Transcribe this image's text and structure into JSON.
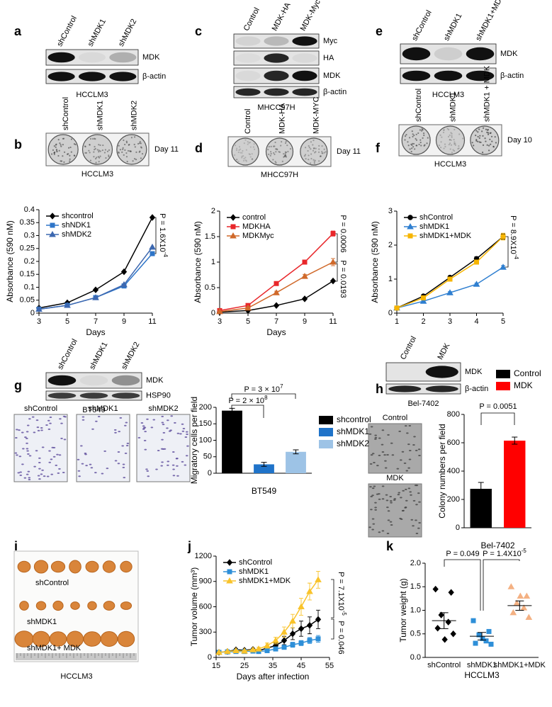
{
  "panel_letters": [
    "a",
    "b",
    "c",
    "d",
    "e",
    "f",
    "g",
    "h",
    "i",
    "j",
    "k"
  ],
  "blots": {
    "a": {
      "lanes": [
        "shControl",
        "shMDK1",
        "shMDK2"
      ],
      "bands": [
        "MDK",
        "β-actin"
      ],
      "cell_line": "HCCLM3"
    },
    "c": {
      "lanes": [
        "Control",
        "MDK-HA",
        "MDK-Myc"
      ],
      "bands": [
        "Myc",
        "HA",
        "MDK",
        "β-actin"
      ],
      "cell_line": "MHCC97H"
    },
    "e": {
      "lanes": [
        "shControl",
        "shMDK1",
        "shMDK1+MDK"
      ],
      "bands": [
        "MDK",
        "β-actin"
      ],
      "cell_line": "HCCLM3"
    },
    "g": {
      "lanes": [
        "shControl",
        "shMDK1",
        "shMDK2"
      ],
      "bands": [
        "MDK",
        "HSP90"
      ],
      "cell_line": "BT549"
    },
    "h": {
      "lanes": [
        "Control",
        "MDK"
      ],
      "bands": [
        "MDK",
        "β-actin"
      ],
      "cell_line": "Bel-7402"
    }
  },
  "colony": {
    "b": {
      "lanes": [
        "shControl",
        "shMDK1",
        "shMDK2"
      ],
      "day": "Day 11",
      "cell_line": "HCCLM3"
    },
    "d": {
      "lanes": [
        "Control",
        "MDK-HA",
        "MDK-MYC"
      ],
      "day": "Day 11",
      "cell_line": "MHCC97H"
    },
    "f": {
      "lanes": [
        "shControl",
        "shMDK1",
        "shMDK1 + MDK"
      ],
      "day": "Day 10",
      "cell_line": "HCCLM3"
    }
  },
  "transwell": {
    "g": [
      "shControl",
      "shMDK1",
      "shMDK2"
    ],
    "h": [
      "Control",
      "MDK"
    ]
  },
  "tumor_photo": {
    "labels": [
      "shControl",
      "shMDK1",
      "shMDK1+ MDK"
    ],
    "cell_line": "HCCLM3"
  },
  "chart_data": [
    {
      "type": "line",
      "x": [
        3,
        5,
        7,
        9,
        11
      ],
      "xlim": [
        3,
        11
      ],
      "xticks": [
        3,
        5,
        7,
        9,
        11
      ],
      "ylim": [
        0,
        0.4
      ],
      "yticks": [
        0,
        0.05,
        0.1,
        0.15,
        0.2,
        0.25,
        0.3,
        0.35,
        0.4
      ],
      "ylabel": "Absorbance (590 nM)",
      "xlabel": "Days",
      "legend": "upper left",
      "series": [
        {
          "name": "shcontrol",
          "color": "#000000",
          "marker": "diamond",
          "values": [
            0.02,
            0.04,
            0.09,
            0.16,
            0.37
          ]
        },
        {
          "name": "shNDK1",
          "color": "#2e75c8",
          "marker": "square",
          "values": [
            0.015,
            0.03,
            0.06,
            0.105,
            0.23
          ]
        },
        {
          "name": "shMDK2",
          "color": "#3d68b0",
          "marker": "triangle",
          "values": [
            0.015,
            0.03,
            0.06,
            0.11,
            0.255
          ]
        }
      ],
      "annotations": [
        {
          "text": "P = 1.6X10",
          "sup": "-4"
        }
      ]
    },
    {
      "type": "line",
      "x": [
        3,
        5,
        7,
        9,
        11
      ],
      "xlim": [
        3,
        11
      ],
      "xticks": [
        3,
        5,
        7,
        9,
        11
      ],
      "ylim": [
        0,
        2
      ],
      "yticks": [
        0,
        0.5,
        1,
        1.5,
        2
      ],
      "ylabel": "Absorbance (590 nM)",
      "xlabel": "Days",
      "legend": "upper left",
      "series": [
        {
          "name": "control",
          "color": "#000000",
          "marker": "diamond",
          "values": [
            0.02,
            0.05,
            0.15,
            0.28,
            0.63
          ]
        },
        {
          "name": "MDKHA",
          "color": "#e8262a",
          "marker": "square",
          "values": [
            0.05,
            0.15,
            0.58,
            1.0,
            1.56
          ],
          "errors": [
            0.01,
            0.02,
            0.03,
            0.03,
            0.05
          ]
        },
        {
          "name": "MDKMyc",
          "color": "#d0692a",
          "marker": "triangle",
          "values": [
            0.03,
            0.1,
            0.4,
            0.72,
            1.0
          ],
          "errors": [
            0.01,
            0.02,
            0.03,
            0.04,
            0.07
          ]
        }
      ],
      "annotations": [
        {
          "text": "P = 0.0006"
        },
        {
          "text": "P = 0.0193"
        }
      ]
    },
    {
      "type": "line",
      "x": [
        1,
        2,
        3,
        4,
        5
      ],
      "xlim": [
        1,
        5
      ],
      "xticks": [
        1,
        2,
        3,
        4,
        5
      ],
      "ylim": [
        0,
        3
      ],
      "yticks": [
        0,
        1,
        2,
        3
      ],
      "ylabel": "Absorbance (590 nM)",
      "legend": "upper left",
      "series": [
        {
          "name": "shControl",
          "color": "#000000",
          "marker": "circle",
          "values": [
            0.15,
            0.5,
            1.05,
            1.6,
            2.25
          ],
          "errors": [
            0.02,
            0.03,
            0.04,
            0.06,
            0.08
          ]
        },
        {
          "name": "shMDK1",
          "color": "#2f7fd0",
          "marker": "triangle",
          "values": [
            0.15,
            0.35,
            0.6,
            0.85,
            1.35
          ],
          "errors": [
            0.02,
            0.02,
            0.03,
            0.03,
            0.05
          ]
        },
        {
          "name": "shMDK1+MDK",
          "color": "#f7b500",
          "marker": "square",
          "values": [
            0.15,
            0.45,
            1.0,
            1.5,
            2.25
          ],
          "errors": [
            0.02,
            0.03,
            0.04,
            0.06,
            0.1
          ]
        }
      ],
      "annotations": [
        {
          "text": "P = 8.9X10",
          "sup": "-4"
        }
      ]
    },
    {
      "type": "bar",
      "categories": [
        "shcontrol",
        "shMDK1",
        "shMDK2"
      ],
      "values": [
        190,
        27,
        65
      ],
      "errors": [
        7,
        6,
        6
      ],
      "colors": [
        "#000000",
        "#1f73c9",
        "#9dc3e6"
      ],
      "ylim": [
        0,
        200
      ],
      "yticks": [
        0,
        50,
        100,
        150,
        200
      ],
      "ylabel": "Migratory cells per field",
      "xlabel": "BT549",
      "legend": "right",
      "annotations": [
        {
          "text": "P = 3 × 10",
          "sup": "7"
        },
        {
          "text": "P = 2 × 10",
          "sup": "8"
        }
      ]
    },
    {
      "type": "bar",
      "categories": [
        "Control",
        "MDK"
      ],
      "values": [
        275,
        615
      ],
      "errors": [
        45,
        25
      ],
      "colors": [
        "#000000",
        "#ff0000"
      ],
      "ylim": [
        0,
        800
      ],
      "yticks": [
        0,
        200,
        400,
        600,
        800
      ],
      "ylabel": "Colony numbers per field",
      "xlabel": "Bel-7402",
      "legend": "upper right",
      "annotations": [
        {
          "text": "P = 0.0051"
        }
      ]
    },
    {
      "type": "line",
      "x": [
        16,
        19,
        22,
        25,
        28,
        30,
        33,
        36,
        39,
        42,
        45,
        48,
        51
      ],
      "xlim": [
        15,
        55
      ],
      "xticks": [
        15,
        25,
        35,
        45,
        55
      ],
      "ylim": [
        0,
        1200
      ],
      "yticks": [
        0,
        300,
        600,
        900,
        1200
      ],
      "ylabel": "Tumor volume (mm³)",
      "xlabel": "Days after infection",
      "legend": "upper left",
      "series": [
        {
          "name": "shControl",
          "color": "#000000",
          "marker": "diamond",
          "values": [
            60,
            70,
            90,
            85,
            95,
            80,
            110,
            140,
            200,
            280,
            340,
            380,
            450
          ],
          "errors": [
            5,
            5,
            10,
            10,
            10,
            10,
            20,
            30,
            50,
            70,
            90,
            100,
            110
          ]
        },
        {
          "name": "shMDK1",
          "color": "#2e8fd8",
          "marker": "square",
          "values": [
            60,
            65,
            70,
            70,
            75,
            70,
            80,
            100,
            120,
            150,
            170,
            200,
            220
          ],
          "errors": [
            5,
            5,
            5,
            5,
            5,
            5,
            10,
            15,
            20,
            30,
            30,
            35,
            40
          ]
        },
        {
          "name": "shMDK1+MDK",
          "color": "#f9c32b",
          "marker": "triangle",
          "values": [
            60,
            70,
            80,
            75,
            90,
            100,
            140,
            200,
            300,
            430,
            600,
            780,
            920
          ],
          "errors": [
            5,
            5,
            10,
            10,
            10,
            20,
            30,
            40,
            60,
            80,
            100,
            100,
            100
          ]
        }
      ],
      "annotations": [
        {
          "text": "P = 7.1X10",
          "sup": "-5"
        },
        {
          "text": "P = 0.046"
        }
      ]
    },
    {
      "type": "dot",
      "categories": [
        "shControl",
        "shMDK1",
        "shMDK1+MDK"
      ],
      "points": [
        [
          1.45,
          1.38,
          0.9,
          0.75,
          0.62,
          0.5,
          0.38
        ],
        [
          0.78,
          0.55,
          0.48,
          0.35,
          0.3,
          0.28,
          0.4
        ],
        [
          1.5,
          1.3,
          1.15,
          1.05,
          0.95,
          0.85,
          1.3
        ]
      ],
      "means": [
        0.78,
        0.45,
        1.1
      ],
      "errors": [
        0.17,
        0.08,
        0.1
      ],
      "colors": [
        "#000000",
        "#2e8fd8",
        "#f4b183"
      ],
      "markers": [
        "diamond",
        "square",
        "triangle"
      ],
      "ylim": [
        0,
        2
      ],
      "yticks": [
        {
          "value": 0,
          "label": "0.0"
        },
        {
          "value": 0.5,
          "label": "0.5"
        },
        {
          "value": 1,
          "label": "1.0"
        },
        {
          "value": 1.5,
          "label": "1.5"
        },
        {
          "value": 2,
          "label": "2.0"
        }
      ],
      "ylabel": "Tumor weight (g)",
      "xlabel": "HCCLM3",
      "annotations": [
        {
          "text": "P = 0.049"
        },
        {
          "text": "P = 1.4X10",
          "sup": "-5"
        }
      ]
    }
  ]
}
